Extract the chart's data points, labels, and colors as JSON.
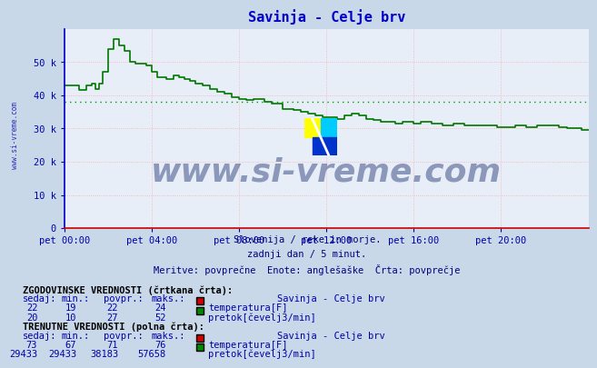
{
  "title": "Savinja - Celje brv",
  "title_color": "#0000cc",
  "bg_color": "#c8d8e8",
  "plot_bg_color": "#e8eef8",
  "subtitle_lines": [
    "Slovenija / reke in morje.",
    "zadnji dan / 5 minut.",
    "Meritve: povprečne  Enote: anglešaške  Črta: povprečje"
  ],
  "subtitle_color": "#000080",
  "watermark_text": "www.si-vreme.com",
  "watermark_color": "#1a3070",
  "xlim": [
    0,
    288
  ],
  "ylim": [
    0,
    60000
  ],
  "yticks": [
    0,
    10000,
    20000,
    30000,
    40000,
    50000
  ],
  "ytick_labels": [
    "0",
    "10 k",
    "20 k",
    "30 k",
    "40 k",
    "50 k"
  ],
  "xticks": [
    0,
    48,
    96,
    144,
    192,
    240
  ],
  "xtick_labels": [
    "pet 00:00",
    "pet 04:00",
    "pet 08:00",
    "pet 12:00",
    "pet 16:00",
    "pet 20:00"
  ],
  "grid_color": "#ffaaaa",
  "axis_color_left": "#0000cc",
  "axis_color_bottom": "#cc0000",
  "tick_color": "#0000aa",
  "flow_line_color": "#007700",
  "flow_avg_color": "#009900",
  "flow_avg_value": 38183,
  "left_label_color": "#0000aa",
  "table_header1": "ZGODOVINSKE VREDNOSTI (črtkana črta):",
  "table_header2": "TRENUTNE VREDNOSTI (polna črta):",
  "table_col_headers": [
    "sedaj:",
    "min.:",
    "povpr.:",
    "maks.:",
    "Savinja - Celje brv"
  ],
  "hist_temp": {
    "sedaj": 22,
    "min": 19,
    "povpr": 22,
    "maks": 24,
    "label": "temperatura[F]",
    "color": "#cc0000"
  },
  "hist_flow": {
    "sedaj": 20,
    "min": 10,
    "povpr": 27,
    "maks": 52,
    "label": "pretok[čevelj3/min]",
    "color": "#008800"
  },
  "curr_temp": {
    "sedaj": 73,
    "min": 67,
    "povpr": 71,
    "maks": 76,
    "label": "temperatura[F]",
    "color": "#cc0000"
  },
  "curr_flow": {
    "sedaj": 29433,
    "min": 29433,
    "povpr": 38183,
    "maks": 57658,
    "label": "pretok[čevelj3/min]",
    "color": "#008800"
  }
}
